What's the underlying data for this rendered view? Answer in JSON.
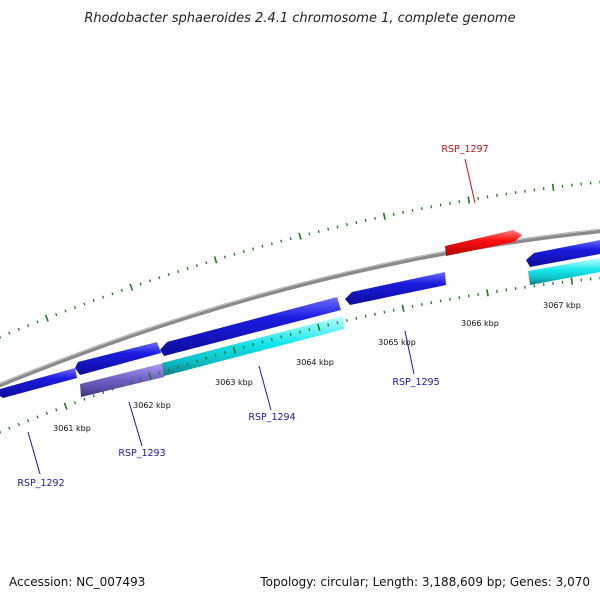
{
  "title": "Rhodobacter sphaeroides 2.4.1 chromosome 1, complete genome",
  "footer": {
    "accession": "Accession: NC_007493",
    "summary": "Topology: circular; Length: 3,188,609 bp; Genes: 3,070"
  },
  "colors": {
    "backbone": "#8a8a8a",
    "tick": "#1e7a1e",
    "forward_gene": "#1b1be0",
    "reverse_gene": "#ff1010",
    "cds_cyan": "#16e6ec",
    "cds_slate": "#7163c8",
    "label_default": "#1a1aa8",
    "label_reverse": "#cc1111"
  },
  "tick_labels": [
    "3061 kbp",
    "3062 kbp",
    "3063 kbp",
    "3064 kbp",
    "3065 kbp",
    "3066 kbp",
    "3067 kbp"
  ],
  "gene_labels": [
    "RSP_1292",
    "RSP_1293",
    "RSP_1294",
    "RSP_1295",
    "RSP_1297"
  ]
}
